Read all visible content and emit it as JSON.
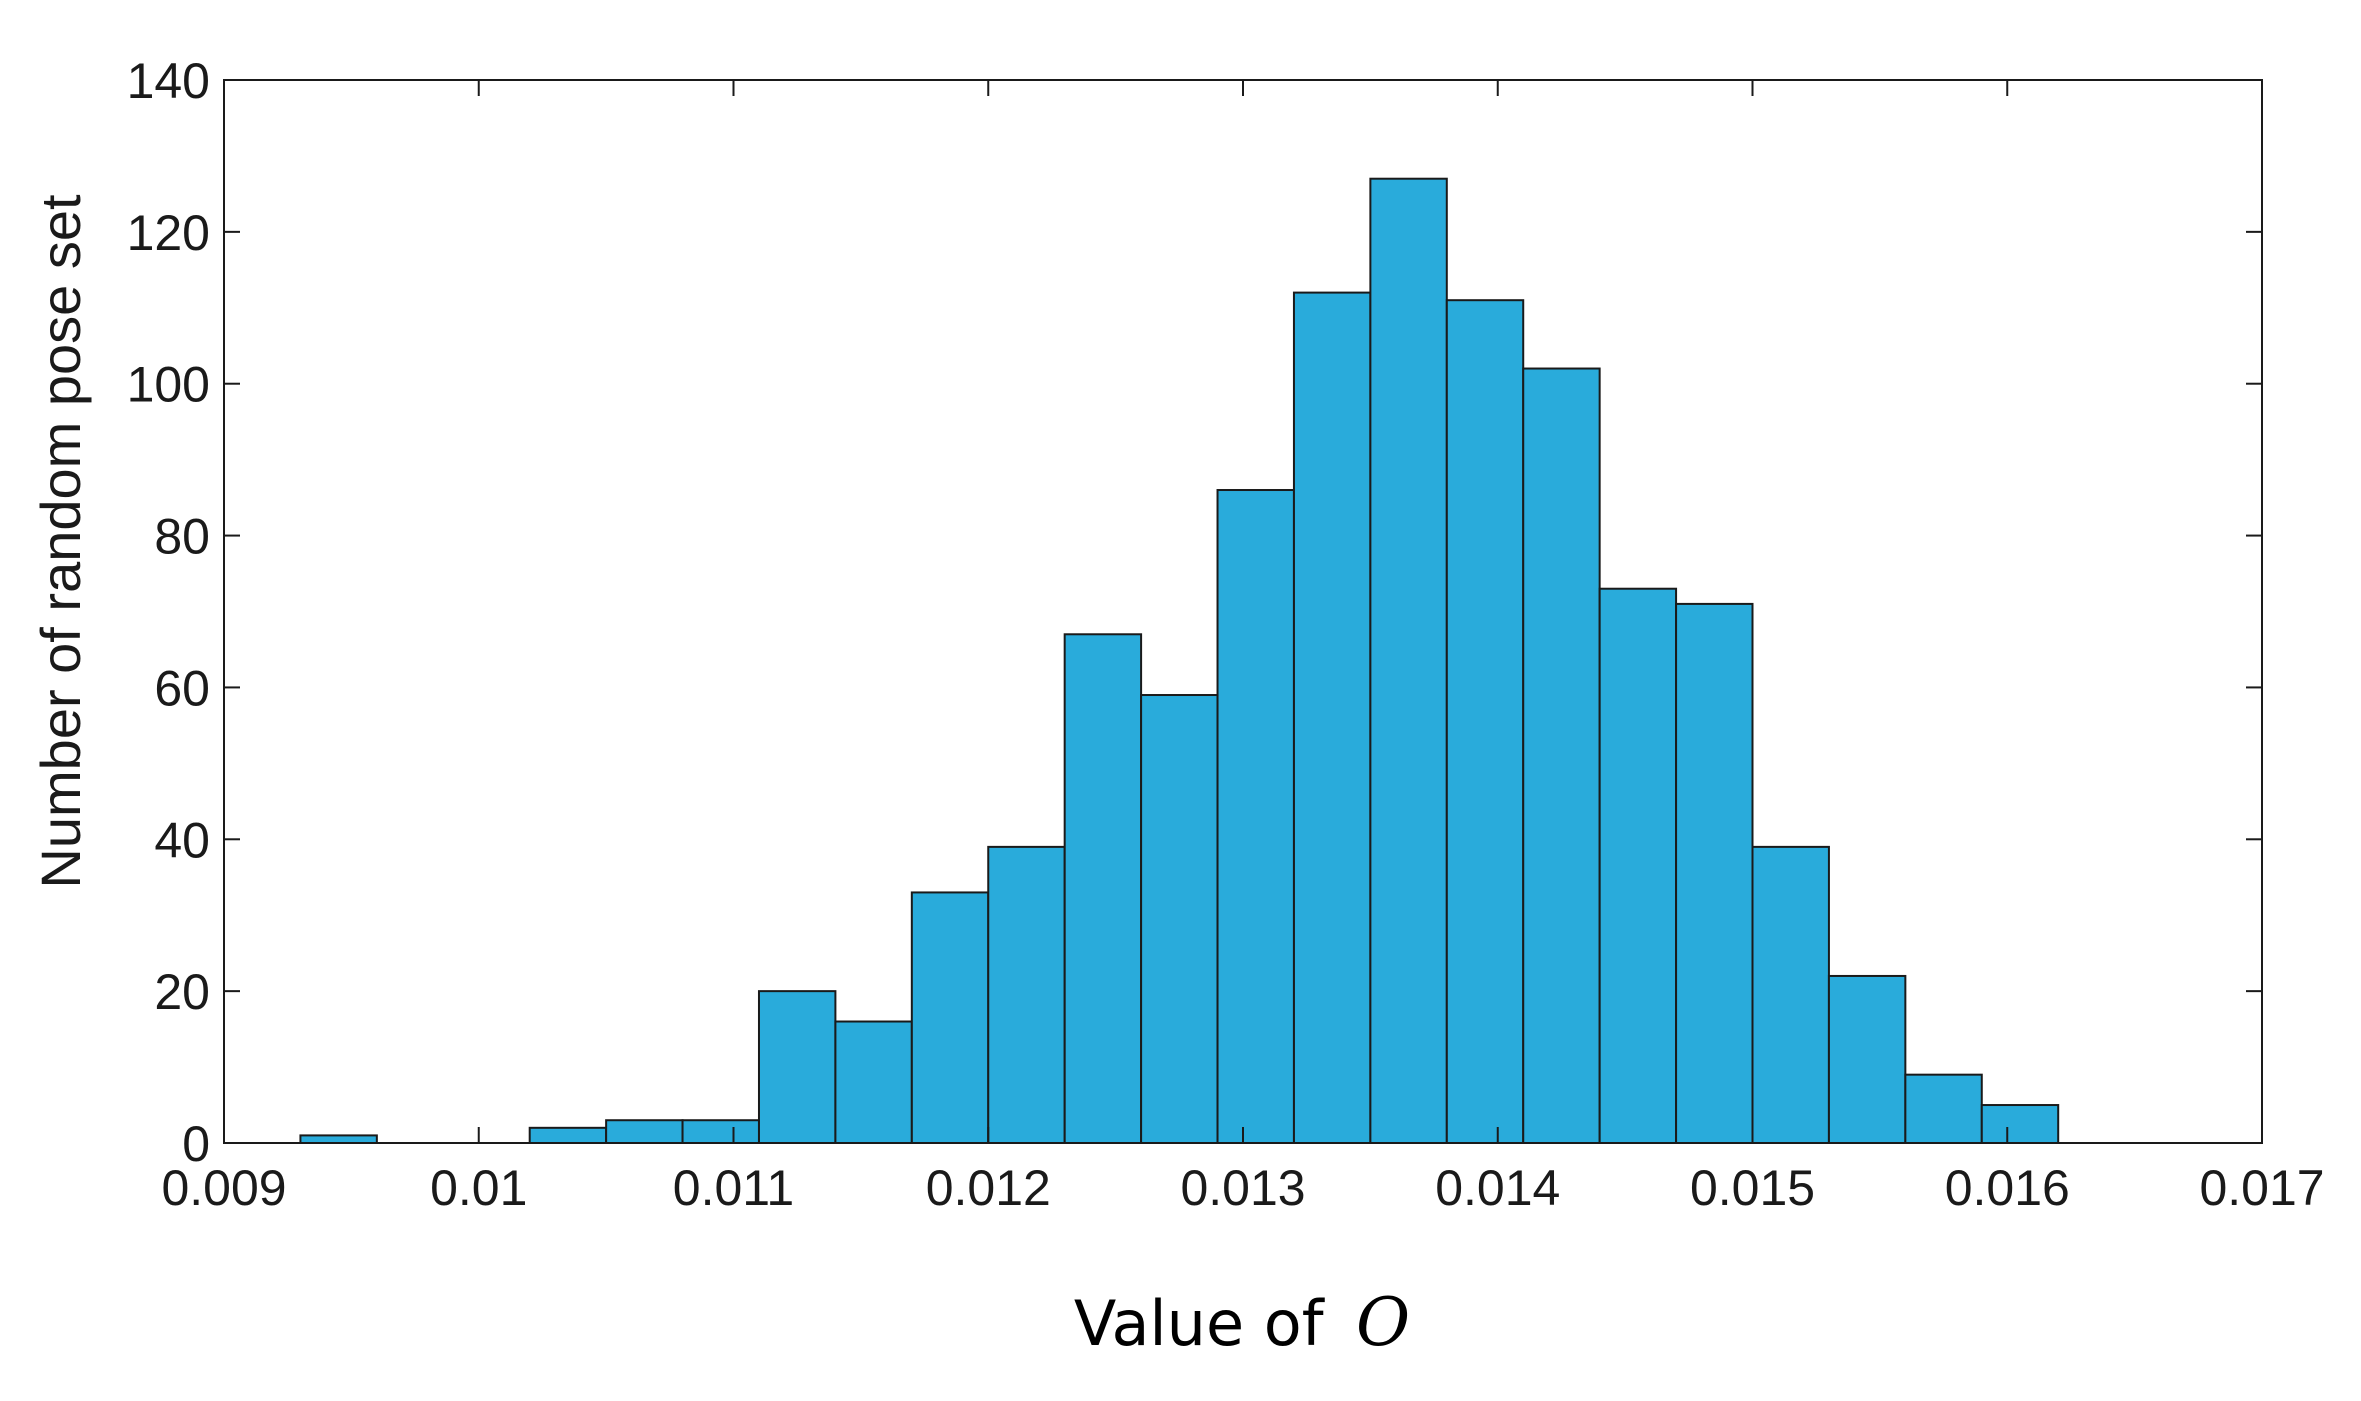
{
  "chart_data": {
    "type": "bar",
    "subtype": "histogram",
    "bins": [
      {
        "start": 0.0093,
        "end": 0.0096,
        "count": 1
      },
      {
        "start": 0.0102,
        "end": 0.0105,
        "count": 2
      },
      {
        "start": 0.0105,
        "end": 0.0108,
        "count": 3
      },
      {
        "start": 0.0108,
        "end": 0.0111,
        "count": 3
      },
      {
        "start": 0.0111,
        "end": 0.0114,
        "count": 20
      },
      {
        "start": 0.0114,
        "end": 0.0117,
        "count": 16
      },
      {
        "start": 0.0117,
        "end": 0.012,
        "count": 33
      },
      {
        "start": 0.012,
        "end": 0.0123,
        "count": 39
      },
      {
        "start": 0.0123,
        "end": 0.0126,
        "count": 67
      },
      {
        "start": 0.0126,
        "end": 0.0129,
        "count": 59
      },
      {
        "start": 0.0129,
        "end": 0.0132,
        "count": 86
      },
      {
        "start": 0.0132,
        "end": 0.0135,
        "count": 112
      },
      {
        "start": 0.0135,
        "end": 0.0138,
        "count": 127
      },
      {
        "start": 0.0138,
        "end": 0.0141,
        "count": 111
      },
      {
        "start": 0.0141,
        "end": 0.0144,
        "count": 102
      },
      {
        "start": 0.0144,
        "end": 0.0147,
        "count": 73
      },
      {
        "start": 0.0147,
        "end": 0.015,
        "count": 71
      },
      {
        "start": 0.015,
        "end": 0.0153,
        "count": 39
      },
      {
        "start": 0.0153,
        "end": 0.0156,
        "count": 22
      },
      {
        "start": 0.0156,
        "end": 0.0159,
        "count": 9
      },
      {
        "start": 0.0159,
        "end": 0.0162,
        "count": 5
      }
    ],
    "title": "",
    "xlabel": "Value of",
    "xlabel_symbol": "O",
    "ylabel": "Number of random pose set",
    "xlim": [
      0.009,
      0.017
    ],
    "ylim": [
      0,
      140
    ],
    "xticks": [
      "0.009",
      "0.01",
      "0.011",
      "0.012",
      "0.013",
      "0.014",
      "0.015",
      "0.016",
      "0.017"
    ],
    "yticks": [
      "0",
      "20",
      "40",
      "60",
      "80",
      "100",
      "120",
      "140"
    ],
    "grid": false,
    "legend": "none",
    "colors": {
      "bar_fill": "#29abdb",
      "bar_edge": "#1a1a1a",
      "axis": "#1a1a1a"
    }
  }
}
